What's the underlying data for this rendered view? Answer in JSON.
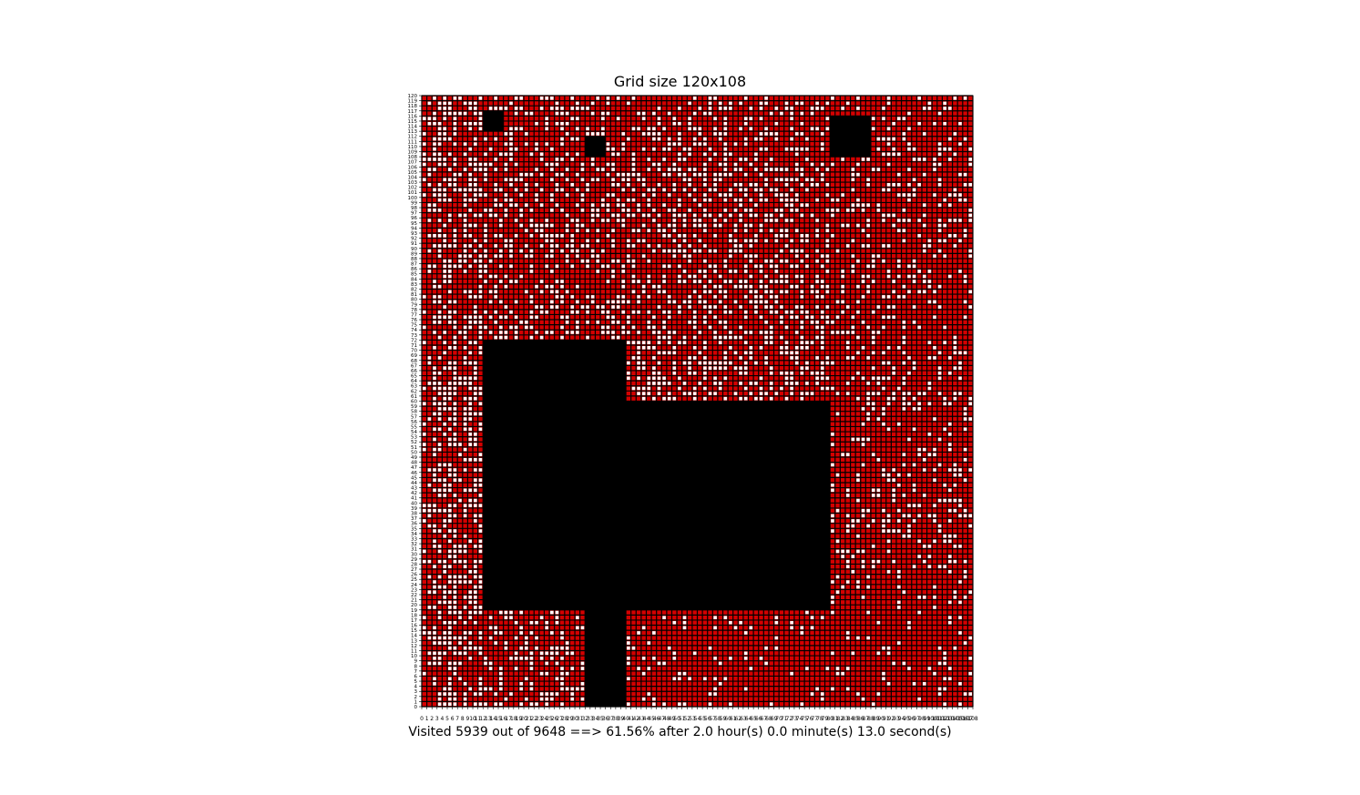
{
  "chart_data": {
    "type": "heatmap",
    "title": "Grid size 120x108",
    "xlabel": "Visited 5939 out of 9648 ==> 61.56% after 2.0 hour(s) 0.0 minute(s) 13.0 second(s)",
    "ylabel": "",
    "xlim": [
      0,
      108
    ],
    "ylim": [
      0,
      120
    ],
    "x_ticks": [
      0,
      1,
      2,
      3,
      4,
      5,
      6,
      7,
      8,
      9,
      10,
      11,
      12,
      13,
      14,
      15,
      16,
      17,
      18,
      19,
      20,
      21,
      22,
      23,
      24,
      25,
      26,
      27,
      28,
      29,
      30,
      31,
      32,
      33,
      34,
      35,
      36,
      37,
      38,
      39,
      40,
      41,
      42,
      43,
      44,
      45,
      46,
      47,
      48,
      49,
      50,
      51,
      52,
      53,
      54,
      55,
      56,
      57,
      58,
      59,
      60,
      61,
      62,
      63,
      64,
      65,
      66,
      67,
      68,
      69,
      70,
      71,
      72,
      73,
      74,
      75,
      76,
      77,
      78,
      79,
      80,
      81,
      82,
      83,
      84,
      85,
      86,
      87,
      88,
      89,
      90,
      91,
      92,
      93,
      94,
      95,
      96,
      97,
      98,
      99,
      100,
      101,
      102,
      103,
      104,
      105,
      106,
      107,
      108
    ],
    "y_ticks": [
      0,
      1,
      2,
      3,
      4,
      5,
      6,
      7,
      8,
      9,
      10,
      11,
      12,
      13,
      14,
      15,
      16,
      17,
      18,
      19,
      20,
      21,
      22,
      23,
      24,
      25,
      26,
      27,
      28,
      29,
      30,
      31,
      32,
      33,
      34,
      35,
      36,
      37,
      38,
      39,
      40,
      41,
      42,
      43,
      44,
      45,
      46,
      47,
      48,
      49,
      50,
      51,
      52,
      53,
      54,
      55,
      56,
      57,
      58,
      59,
      60,
      61,
      62,
      63,
      64,
      65,
      66,
      67,
      68,
      69,
      70,
      71,
      72,
      73,
      74,
      75,
      76,
      77,
      78,
      79,
      80,
      81,
      82,
      83,
      84,
      85,
      86,
      87,
      88,
      89,
      90,
      91,
      92,
      93,
      94,
      95,
      96,
      97,
      98,
      99,
      100,
      101,
      102,
      103,
      104,
      105,
      106,
      107,
      108,
      109,
      110,
      111,
      112,
      113,
      114,
      115,
      116,
      117,
      118,
      119,
      120
    ],
    "grid": true,
    "cell_states": {
      "visited": "#d40000",
      "unvisited": "#ffffff",
      "obstacle": "#000000",
      "gridline": "#000000"
    },
    "obstacles": [
      {
        "x": [
          12,
          40
        ],
        "y": [
          19,
          72
        ]
      },
      {
        "x": [
          40,
          80
        ],
        "y": [
          19,
          60
        ]
      },
      {
        "x": [
          32,
          40
        ],
        "y": [
          0,
          19
        ]
      },
      {
        "x": [
          80,
          88
        ],
        "y": [
          108,
          116
        ]
      },
      {
        "x": [
          12,
          16
        ],
        "y": [
          113,
          117
        ]
      },
      {
        "x": [
          32,
          36
        ],
        "y": [
          108,
          112
        ]
      }
    ],
    "total_cells": 9648,
    "visited_cells": 5939,
    "visited_percent": 61.56
  }
}
